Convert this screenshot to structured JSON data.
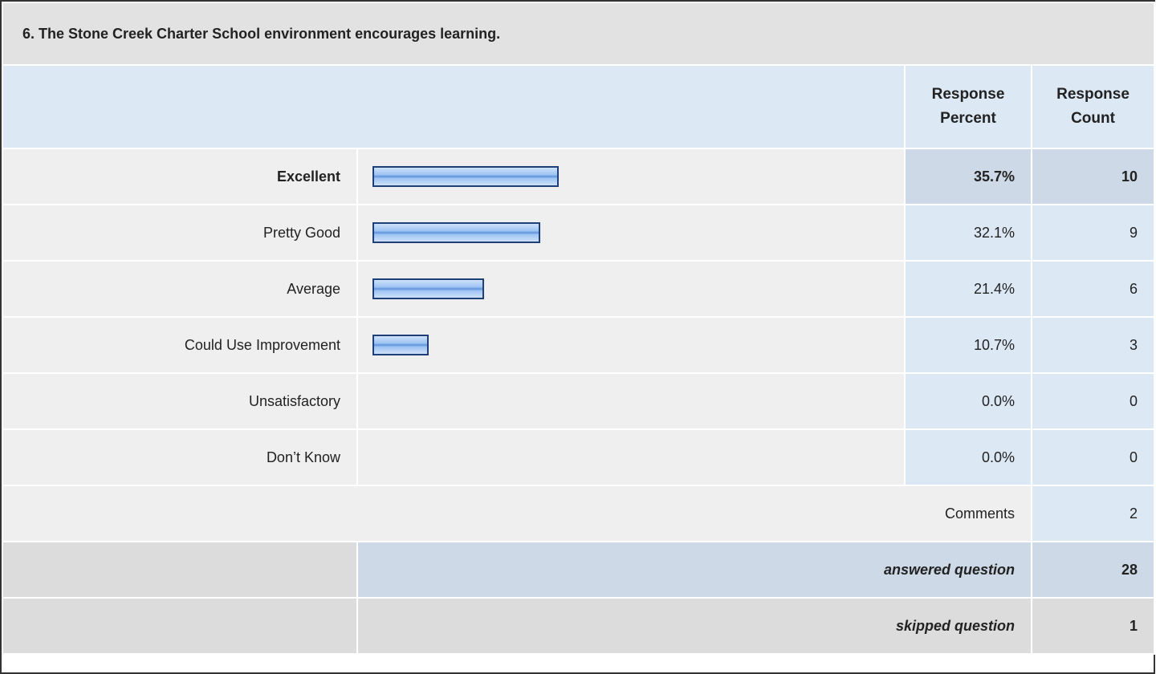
{
  "title": "6. The Stone Creek Charter School environment encourages learning.",
  "header": [
    "Response Percent",
    "Response Count"
  ],
  "highlight_row": 0,
  "rows": [
    {
      "label": "Excellent",
      "percent": 35.7,
      "percent_label": "35.7%",
      "count": 10
    },
    {
      "label": "Pretty Good",
      "percent": 32.1,
      "percent_label": "32.1%",
      "count": 9
    },
    {
      "label": "Average",
      "percent": 21.4,
      "percent_label": "21.4%",
      "count": 6
    },
    {
      "label": "Could Use Improvement",
      "percent": 10.7,
      "percent_label": "10.7%",
      "count": 3
    },
    {
      "label": "Unsatisfactory",
      "percent": 0.0,
      "percent_label": "0.0%",
      "count": 0
    },
    {
      "label": "Don’t Know",
      "percent": 0.0,
      "percent_label": "0.0%",
      "count": 0
    }
  ],
  "comments": {
    "label": "Comments",
    "count": 2
  },
  "answered": {
    "label": "answered question",
    "count": 28
  },
  "skipped": {
    "label": "skipped question",
    "count": 1
  }
}
